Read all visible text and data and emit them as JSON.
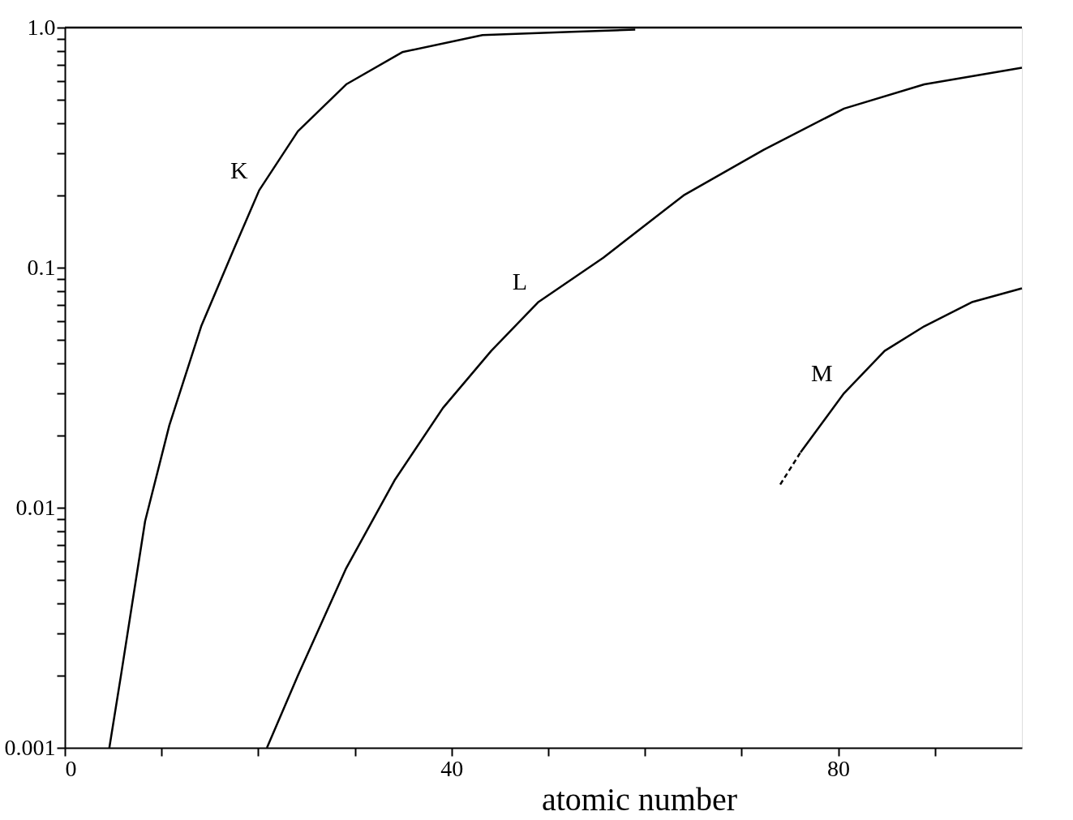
{
  "chart_data": {
    "type": "line",
    "xlabel": "atomic number",
    "log": "y",
    "grid": false,
    "marker": "none",
    "xlim": [
      0,
      99
    ],
    "xticks": [
      0,
      {
        "value": 10,
        "label": null
      },
      {
        "value": 20,
        "label": null
      },
      {
        "value": 30,
        "label": null
      },
      40,
      {
        "value": 50,
        "label": null
      },
      {
        "value": 60,
        "label": null
      },
      {
        "value": 70,
        "label": null
      },
      80,
      {
        "value": 90,
        "label": null
      }
    ],
    "ylim": [
      0.001,
      1.0
    ],
    "yticks": [
      {
        "value": 0.001,
        "label": "0.001"
      },
      {
        "value": 0.002,
        "label": null
      },
      {
        "value": 0.003,
        "label": null
      },
      {
        "value": 0.004,
        "label": null
      },
      {
        "value": 0.005,
        "label": null
      },
      {
        "value": 0.006,
        "label": null
      },
      {
        "value": 0.007,
        "label": null
      },
      {
        "value": 0.008,
        "label": null
      },
      {
        "value": 0.009,
        "label": null
      },
      0.01,
      {
        "value": 0.02,
        "label": null
      },
      {
        "value": 0.03,
        "label": null
      },
      {
        "value": 0.04,
        "label": null
      },
      {
        "value": 0.05,
        "label": null
      },
      {
        "value": 0.06,
        "label": null
      },
      {
        "value": 0.07,
        "label": null
      },
      {
        "value": 0.08,
        "label": null
      },
      {
        "value": 0.09,
        "label": null
      },
      0.1,
      {
        "value": 0.2,
        "label": null
      },
      {
        "value": 0.3,
        "label": null
      },
      {
        "value": 0.4,
        "label": null
      },
      {
        "value": 0.5,
        "label": null
      },
      {
        "value": 0.6,
        "label": null
      },
      {
        "value": 0.7,
        "label": null
      },
      {
        "value": 0.8,
        "label": null
      },
      {
        "value": 0.9,
        "label": null
      },
      {
        "value": 1.0,
        "label": "1.0"
      }
    ],
    "ref_lines": [
      {
        "axis": "y",
        "value": 1.0,
        "color": "#000000"
      }
    ],
    "series": [
      {
        "name": "K",
        "color": "#000000",
        "line_style": "solid",
        "x": [
          4.6,
          5.8,
          8.3,
          10.8,
          14.1,
          17.5,
          20.1,
          24.1,
          29.1,
          34.9,
          43.2,
          52.4,
          59.0
        ],
        "values": [
          0.001,
          0.002,
          0.0088,
          0.022,
          0.057,
          0.12,
          0.21,
          0.37,
          0.58,
          0.79,
          0.93,
          0.96,
          0.98
        ]
      },
      {
        "name": "L",
        "color": "#000000",
        "line_style": "solid",
        "x": [
          20.9,
          24.1,
          29.1,
          34.1,
          39.1,
          44.1,
          49.0,
          55.7,
          64.0,
          72.3,
          80.6,
          88.9,
          99.0
        ],
        "values": [
          0.001,
          0.002,
          0.0056,
          0.013,
          0.026,
          0.045,
          0.072,
          0.11,
          0.2,
          0.31,
          0.46,
          0.58,
          0.68
        ]
      },
      {
        "color": "#000000",
        "line_style": "dashed",
        "x": [
          74.0,
          76.1
        ],
        "values": [
          0.0125,
          0.017
        ]
      },
      {
        "name": "M",
        "color": "#000000",
        "line_style": "solid",
        "x": [
          76.1,
          80.6,
          84.8,
          88.9,
          93.9,
          99.0
        ],
        "values": [
          0.017,
          0.03,
          0.045,
          0.057,
          0.072,
          0.082
        ]
      }
    ]
  }
}
